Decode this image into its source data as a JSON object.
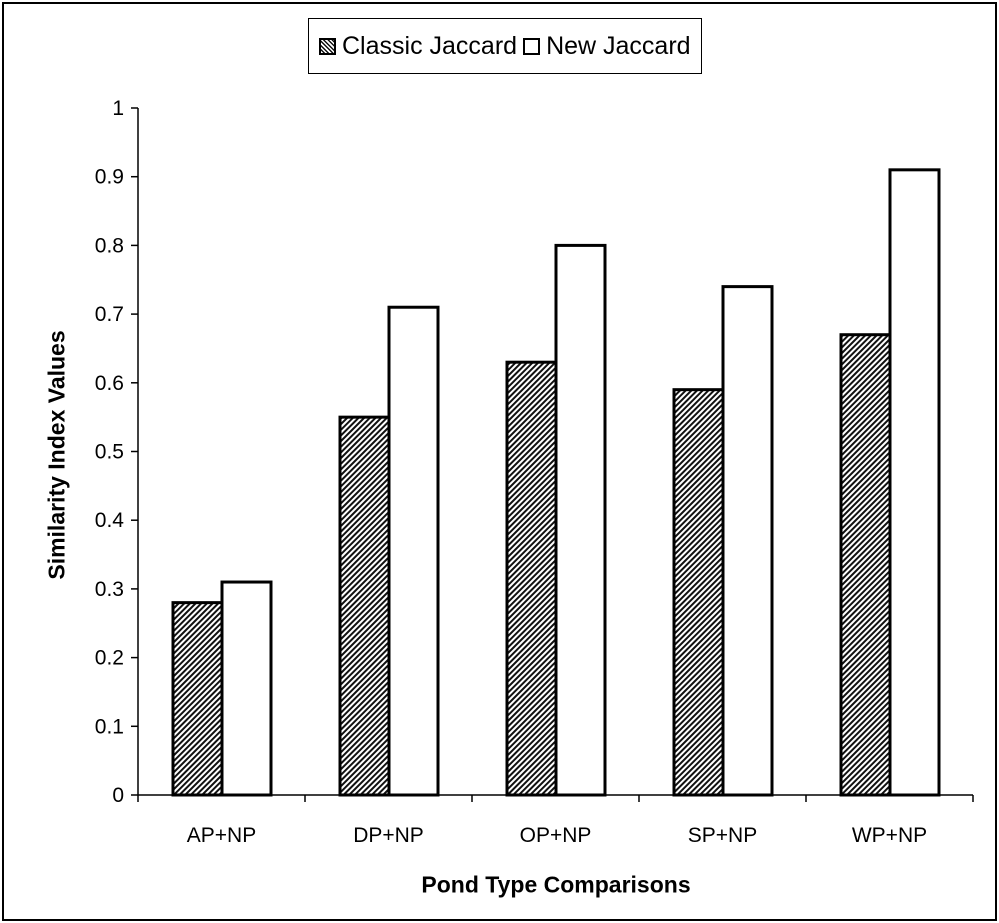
{
  "chart_data": {
    "type": "bar",
    "title": "",
    "xlabel": "Pond Type Comparisons",
    "ylabel": "Similarity Index Values",
    "categories": [
      "AP+NP",
      "DP+NP",
      "OP+NP",
      "SP+NP",
      "WP+NP"
    ],
    "series": [
      {
        "name": "Classic Jaccard",
        "pattern": "hatched",
        "values": [
          0.28,
          0.55,
          0.63,
          0.59,
          0.67
        ]
      },
      {
        "name": "New Jaccard",
        "pattern": "plain",
        "values": [
          0.31,
          0.71,
          0.8,
          0.74,
          0.91
        ]
      }
    ],
    "ylim": [
      0,
      1
    ],
    "yticks": [
      "0",
      "0.1",
      "0.2",
      "0.3",
      "0.4",
      "0.5",
      "0.6",
      "0.7",
      "0.8",
      "0.9",
      "1"
    ],
    "grid": false,
    "legend_position": "top-center",
    "colors": {
      "bar_outline": "#000000",
      "hatch": "#111111",
      "background": "#ffffff"
    }
  }
}
